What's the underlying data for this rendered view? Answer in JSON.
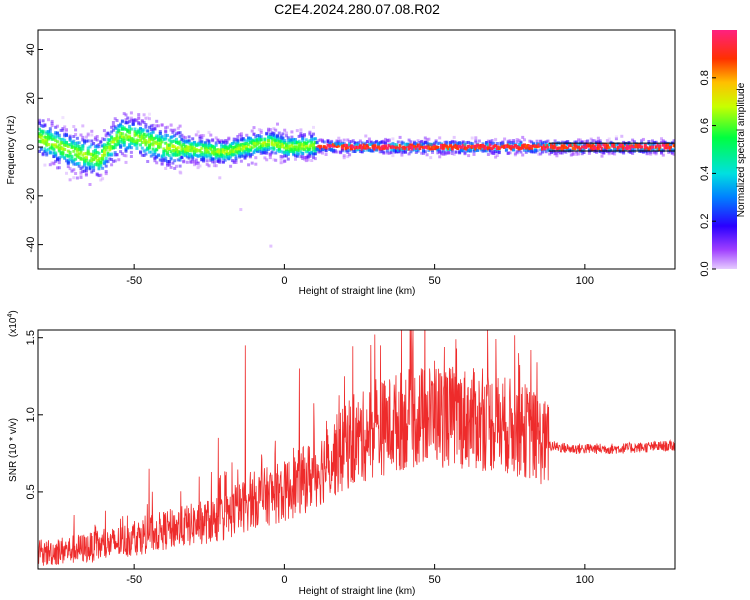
{
  "title": "C2E4.2024.280.07.08.R02",
  "chart_data": [
    {
      "type": "heatmap",
      "xlabel": "Height of straight line (km)",
      "ylabel": "Frequency (Hz)",
      "xlim": [
        -82,
        130
      ],
      "ylim": [
        -50,
        48
      ],
      "xticks": [
        "-50",
        "0",
        "50",
        "100"
      ],
      "yticks": [
        "-40",
        "-20",
        "0",
        "20",
        "40"
      ],
      "colorbar": {
        "label": "Normalized spectral amplitude",
        "range": [
          0,
          1
        ],
        "ticks": [
          "0.0",
          "0.2",
          "0.4",
          "0.6",
          "0.8"
        ]
      },
      "ridge": [
        {
          "x": -82,
          "y": 4
        },
        {
          "x": -75,
          "y": 0
        },
        {
          "x": -68,
          "y": -3
        },
        {
          "x": -62,
          "y": -5
        },
        {
          "x": -58,
          "y": 1
        },
        {
          "x": -55,
          "y": 5
        },
        {
          "x": -50,
          "y": 4
        },
        {
          "x": -45,
          "y": 2
        },
        {
          "x": -40,
          "y": 0
        },
        {
          "x": -30,
          "y": -1
        },
        {
          "x": -20,
          "y": -2
        },
        {
          "x": -10,
          "y": 1
        },
        {
          "x": -5,
          "y": 2
        },
        {
          "x": 0,
          "y": 0
        },
        {
          "x": 10,
          "y": 0.5
        },
        {
          "x": 20,
          "y": 0
        },
        {
          "x": 50,
          "y": 0
        },
        {
          "x": 88,
          "y": 0
        },
        {
          "x": 130,
          "y": 0
        }
      ]
    },
    {
      "type": "line",
      "xlabel": "Height of straight line (km)",
      "ylabel": "SNR (10 * v/v)",
      "scale_label": "(x10",
      "scale_exp": "4",
      "scale_close": ")",
      "xlim": [
        -82,
        130
      ],
      "ylim": [
        0,
        1.55
      ],
      "xticks": [
        "-50",
        "0",
        "50",
        "100"
      ],
      "yticks": [
        "0.5",
        "1.0",
        "1.5"
      ],
      "trend": [
        {
          "x": -82,
          "y": 0.1
        },
        {
          "x": -60,
          "y": 0.15
        },
        {
          "x": -40,
          "y": 0.25
        },
        {
          "x": -20,
          "y": 0.33
        },
        {
          "x": -10,
          "y": 0.45
        },
        {
          "x": 0,
          "y": 0.5
        },
        {
          "x": 10,
          "y": 0.62
        },
        {
          "x": 20,
          "y": 0.78
        },
        {
          "x": 30,
          "y": 0.9
        },
        {
          "x": 40,
          "y": 0.97
        },
        {
          "x": 50,
          "y": 1.0
        },
        {
          "x": 60,
          "y": 0.98
        },
        {
          "x": 70,
          "y": 0.95
        },
        {
          "x": 80,
          "y": 0.9
        },
        {
          "x": 88,
          "y": 0.8
        },
        {
          "x": 95,
          "y": 0.78
        },
        {
          "x": 110,
          "y": 0.78
        },
        {
          "x": 130,
          "y": 0.8
        }
      ],
      "spikes": [
        {
          "x": -70,
          "y": 0.35
        },
        {
          "x": -45,
          "y": 0.65
        },
        {
          "x": -22,
          "y": 0.85
        },
        {
          "x": -13,
          "y": 1.45
        },
        {
          "x": 5,
          "y": 1.3
        },
        {
          "x": 20,
          "y": 1.25
        },
        {
          "x": 32,
          "y": 1.45
        },
        {
          "x": 39,
          "y": 1.55
        },
        {
          "x": 50,
          "y": 1.35
        },
        {
          "x": 66,
          "y": 1.3
        },
        {
          "x": 78,
          "y": 1.4
        },
        {
          "x": 82,
          "y": 1.42
        }
      ]
    }
  ],
  "colors": {
    "line": "#ee2b2b",
    "axis": "#000000"
  }
}
